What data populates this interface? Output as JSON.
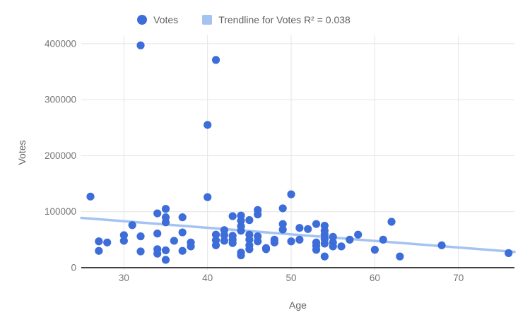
{
  "legend": {
    "series_label": "Votes",
    "trendline_label": "Trendline for Votes R² = 0.038"
  },
  "colors": {
    "series": "#3D6DD8",
    "trendline": "#A5C3F1",
    "gridline": "#E4E4E4",
    "axis_line": "#424242",
    "tick_label": "#757575",
    "axis_title": "#616161"
  },
  "chart_data": {
    "type": "scatter",
    "title": "",
    "xlabel": "Age",
    "ylabel": "Votes",
    "xlim": [
      24.9,
      76.7
    ],
    "ylim": [
      0,
      415000
    ],
    "x_ticks": [
      30,
      40,
      50,
      60,
      70
    ],
    "y_ticks": [
      0,
      100000,
      200000,
      300000,
      400000
    ],
    "grid": true,
    "legend_position": "top",
    "series": [
      {
        "name": "Votes",
        "points": [
          [
            26,
            127000
          ],
          [
            27,
            47000
          ],
          [
            27,
            30000
          ],
          [
            28,
            45000
          ],
          [
            30,
            58000
          ],
          [
            30,
            48000
          ],
          [
            31,
            76000
          ],
          [
            32,
            397000
          ],
          [
            32,
            56000
          ],
          [
            32,
            29000
          ],
          [
            34,
            97000
          ],
          [
            34,
            61000
          ],
          [
            34,
            33000
          ],
          [
            34,
            25000
          ],
          [
            35,
            105000
          ],
          [
            35,
            90000
          ],
          [
            35,
            81000
          ],
          [
            35,
            31000
          ],
          [
            35,
            14000
          ],
          [
            36,
            48000
          ],
          [
            37,
            90000
          ],
          [
            37,
            63000
          ],
          [
            37,
            30000
          ],
          [
            38,
            45000
          ],
          [
            38,
            38000
          ],
          [
            40,
            255000
          ],
          [
            40,
            126000
          ],
          [
            41,
            371000
          ],
          [
            41,
            59000
          ],
          [
            41,
            49000
          ],
          [
            41,
            40000
          ],
          [
            42,
            67000
          ],
          [
            42,
            58000
          ],
          [
            42,
            48000
          ],
          [
            43,
            92000
          ],
          [
            43,
            57000
          ],
          [
            43,
            50000
          ],
          [
            43,
            44000
          ],
          [
            44,
            93000
          ],
          [
            44,
            84000
          ],
          [
            44,
            74000
          ],
          [
            44,
            66000
          ],
          [
            44,
            27000
          ],
          [
            44,
            22000
          ],
          [
            45,
            85000
          ],
          [
            45,
            59000
          ],
          [
            45,
            50000
          ],
          [
            45,
            40000
          ],
          [
            45,
            33000
          ],
          [
            46,
            103000
          ],
          [
            46,
            95000
          ],
          [
            46,
            56000
          ],
          [
            46,
            47000
          ],
          [
            47,
            35000
          ],
          [
            47,
            33000
          ],
          [
            48,
            50000
          ],
          [
            48,
            45000
          ],
          [
            49,
            106000
          ],
          [
            49,
            78000
          ],
          [
            49,
            68000
          ],
          [
            50,
            131000
          ],
          [
            50,
            47000
          ],
          [
            51,
            71000
          ],
          [
            51,
            50000
          ],
          [
            52,
            69000
          ],
          [
            53,
            78000
          ],
          [
            53,
            45000
          ],
          [
            53,
            39000
          ],
          [
            53,
            32000
          ],
          [
            54,
            75000
          ],
          [
            54,
            66000
          ],
          [
            54,
            59000
          ],
          [
            54,
            51000
          ],
          [
            54,
            43000
          ],
          [
            54,
            20000
          ],
          [
            55,
            55000
          ],
          [
            55,
            45000
          ],
          [
            55,
            38000
          ],
          [
            56,
            38000
          ],
          [
            57,
            50000
          ],
          [
            58,
            59000
          ],
          [
            60,
            32000
          ],
          [
            61,
            50000
          ],
          [
            62,
            82000
          ],
          [
            63,
            20000
          ],
          [
            68,
            40000
          ],
          [
            76,
            26000
          ]
        ]
      }
    ],
    "trendline": {
      "name": "Trendline for Votes",
      "r_squared": 0.038,
      "x": [
        24.9,
        76.7
      ],
      "y": [
        89000,
        28200
      ]
    }
  }
}
